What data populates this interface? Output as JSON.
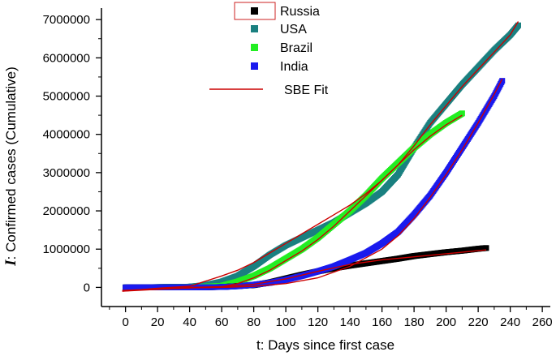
{
  "chart_data": {
    "type": "scatter",
    "xlabel": "t: Days since first case",
    "ylabel_symbol": "I",
    "ylabel_rest": ": Confirmed cases (Cumulative)",
    "xlim": [
      -15,
      265
    ],
    "ylim": [
      -500000,
      7300000
    ],
    "xticks": [
      0,
      20,
      40,
      60,
      80,
      100,
      120,
      140,
      160,
      180,
      200,
      220,
      240,
      260
    ],
    "yticks": [
      0,
      1000000,
      2000000,
      3000000,
      4000000,
      5000000,
      6000000,
      7000000
    ],
    "legend_position": "top-center",
    "series": [
      {
        "name": "Russia",
        "color": "#000000",
        "marker": "square",
        "points": [
          [
            0,
            0
          ],
          [
            40,
            1000
          ],
          [
            60,
            10000
          ],
          [
            80,
            60000
          ],
          [
            90,
            130000
          ],
          [
            100,
            230000
          ],
          [
            110,
            330000
          ],
          [
            120,
            420000
          ],
          [
            130,
            500000
          ],
          [
            140,
            570000
          ],
          [
            150,
            630000
          ],
          [
            160,
            690000
          ],
          [
            170,
            750000
          ],
          [
            180,
            820000
          ],
          [
            190,
            870000
          ],
          [
            200,
            920000
          ],
          [
            210,
            960000
          ],
          [
            220,
            1010000
          ],
          [
            225,
            1030000
          ]
        ]
      },
      {
        "name": "USA",
        "color": "#1a8080",
        "marker": "square",
        "points": [
          [
            0,
            0
          ],
          [
            40,
            20000
          ],
          [
            50,
            60000
          ],
          [
            60,
            150000
          ],
          [
            70,
            300000
          ],
          [
            80,
            550000
          ],
          [
            90,
            850000
          ],
          [
            100,
            1100000
          ],
          [
            110,
            1300000
          ],
          [
            120,
            1500000
          ],
          [
            130,
            1700000
          ],
          [
            140,
            1950000
          ],
          [
            150,
            2200000
          ],
          [
            160,
            2500000
          ],
          [
            170,
            2950000
          ],
          [
            180,
            3650000
          ],
          [
            190,
            4300000
          ],
          [
            200,
            4800000
          ],
          [
            210,
            5300000
          ],
          [
            220,
            5750000
          ],
          [
            230,
            6200000
          ],
          [
            240,
            6600000
          ],
          [
            245,
            6850000
          ]
        ]
      },
      {
        "name": "Brazil",
        "color": "#22ee22",
        "marker": "square",
        "points": [
          [
            0,
            0
          ],
          [
            40,
            5000
          ],
          [
            60,
            40000
          ],
          [
            70,
            150000
          ],
          [
            80,
            300000
          ],
          [
            90,
            500000
          ],
          [
            100,
            750000
          ],
          [
            110,
            1000000
          ],
          [
            120,
            1300000
          ],
          [
            130,
            1650000
          ],
          [
            140,
            2000000
          ],
          [
            150,
            2400000
          ],
          [
            160,
            2850000
          ],
          [
            170,
            3250000
          ],
          [
            180,
            3650000
          ],
          [
            190,
            4000000
          ],
          [
            200,
            4300000
          ],
          [
            210,
            4550000
          ]
        ]
      },
      {
        "name": "India",
        "color": "#1a1aee",
        "marker": "square",
        "points": [
          [
            0,
            0
          ],
          [
            40,
            1000
          ],
          [
            60,
            10000
          ],
          [
            70,
            30000
          ],
          [
            80,
            70000
          ],
          [
            90,
            120000
          ],
          [
            100,
            200000
          ],
          [
            110,
            300000
          ],
          [
            120,
            420000
          ],
          [
            130,
            550000
          ],
          [
            140,
            720000
          ],
          [
            150,
            900000
          ],
          [
            160,
            1150000
          ],
          [
            170,
            1450000
          ],
          [
            180,
            1900000
          ],
          [
            190,
            2400000
          ],
          [
            200,
            3000000
          ],
          [
            210,
            3650000
          ],
          [
            220,
            4300000
          ],
          [
            230,
            5000000
          ],
          [
            235,
            5400000
          ]
        ]
      }
    ],
    "fits": [
      {
        "name": "SBE Fit",
        "color": "#cc0000",
        "curves": [
          [
            [
              -2,
              -100000
            ],
            [
              20,
              -20000
            ],
            [
              40,
              30000
            ],
            [
              60,
              300000
            ],
            [
              70,
              450000
            ],
            [
              80,
              650000
            ],
            [
              90,
              900000
            ],
            [
              100,
              1150000
            ],
            [
              110,
              1400000
            ],
            [
              120,
              1650000
            ],
            [
              130,
              1900000
            ],
            [
              140,
              2150000
            ],
            [
              150,
              2450000
            ],
            [
              160,
              2800000
            ],
            [
              170,
              3200000
            ],
            [
              180,
              3700000
            ],
            [
              190,
              4250000
            ],
            [
              200,
              4750000
            ],
            [
              210,
              5250000
            ],
            [
              220,
              5700000
            ],
            [
              230,
              6150000
            ],
            [
              240,
              6600000
            ],
            [
              245,
              6950000
            ]
          ],
          [
            [
              -2,
              -100000
            ],
            [
              30,
              -30000
            ],
            [
              60,
              20000
            ],
            [
              70,
              100000
            ],
            [
              80,
              250000
            ],
            [
              90,
              450000
            ],
            [
              100,
              700000
            ],
            [
              110,
              950000
            ],
            [
              120,
              1250000
            ],
            [
              130,
              1600000
            ],
            [
              140,
              2000000
            ],
            [
              150,
              2400000
            ],
            [
              160,
              2800000
            ],
            [
              170,
              3200000
            ],
            [
              180,
              3600000
            ],
            [
              190,
              3950000
            ],
            [
              200,
              4250000
            ],
            [
              210,
              4500000
            ]
          ],
          [
            [
              -2,
              -80000
            ],
            [
              40,
              0
            ],
            [
              60,
              20000
            ],
            [
              80,
              80000
            ],
            [
              100,
              220000
            ],
            [
              120,
              420000
            ],
            [
              140,
              600000
            ],
            [
              160,
              720000
            ],
            [
              180,
              800000
            ],
            [
              200,
              880000
            ],
            [
              220,
              960000
            ],
            [
              225,
              980000
            ]
          ],
          [
            [
              -2,
              -80000
            ],
            [
              40,
              -10000
            ],
            [
              60,
              0
            ],
            [
              80,
              30000
            ],
            [
              100,
              100000
            ],
            [
              120,
              250000
            ],
            [
              140,
              550000
            ],
            [
              160,
              1000000
            ],
            [
              170,
              1350000
            ],
            [
              180,
              1800000
            ],
            [
              190,
              2350000
            ],
            [
              200,
              2950000
            ],
            [
              210,
              3600000
            ],
            [
              220,
              4300000
            ],
            [
              230,
              5050000
            ],
            [
              235,
              5450000
            ]
          ]
        ]
      }
    ]
  }
}
